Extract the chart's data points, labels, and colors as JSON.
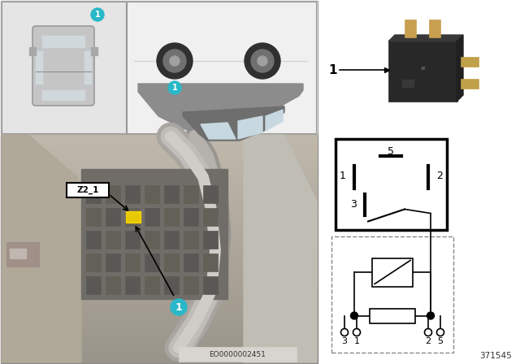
{
  "bg": "#f5f5f5",
  "cyan": "#29b8c8",
  "yellow": "#f0d000",
  "black": "#000000",
  "white": "#ffffff",
  "gray_light": "#d8d8d8",
  "gray_mid": "#b0b0b0",
  "gray_dark": "#808080",
  "panel_bg_top": "#e2e2e2",
  "panel_bg_car": "#ececec",
  "panel_bg_bottom": "#c8c8c4",
  "doc_num": "371545",
  "eo_num": "EO0000002451"
}
